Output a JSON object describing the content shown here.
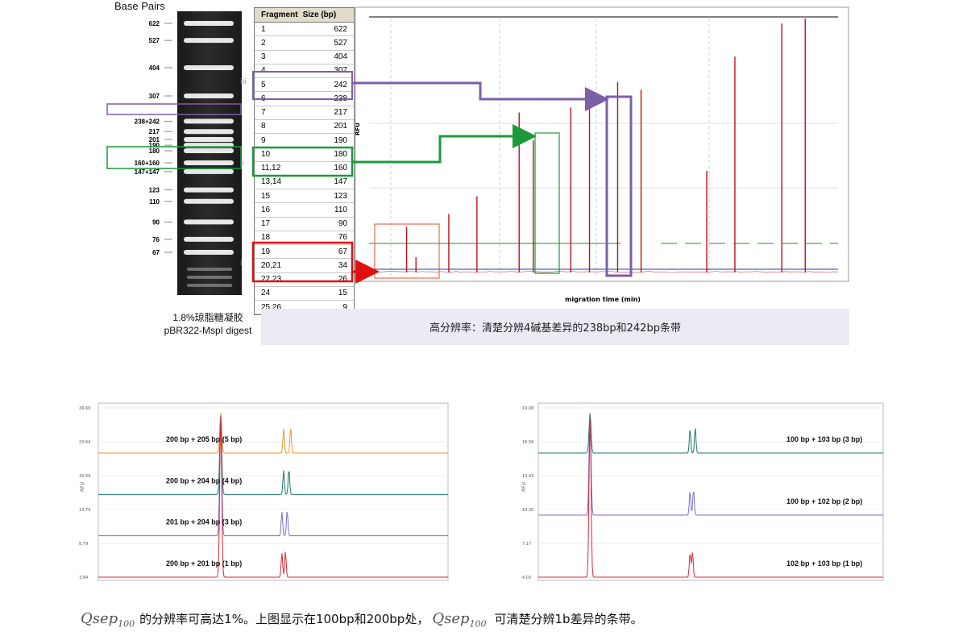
{
  "gel": {
    "title": "Base Pairs",
    "markers": [
      {
        "label": "622",
        "bp": 622
      },
      {
        "label": "527",
        "bp": 527
      },
      {
        "label": "404",
        "bp": 404
      },
      {
        "label": "307",
        "bp": 307
      },
      {
        "label": "238+242",
        "bp": 240
      },
      {
        "label": "217",
        "bp": 217
      },
      {
        "label": "201",
        "bp": 201
      },
      {
        "label": "190",
        "bp": 190
      },
      {
        "label": "180",
        "bp": 180
      },
      {
        "label": "160+160",
        "bp": 160
      },
      {
        "label": "147+147",
        "bp": 147
      },
      {
        "label": "123",
        "bp": 123
      },
      {
        "label": "110",
        "bp": 110
      },
      {
        "label": "90",
        "bp": 90
      },
      {
        "label": "76",
        "bp": 76
      },
      {
        "label": "67",
        "bp": 67
      }
    ],
    "caption_line1": "1.8%琼脂糖凝胶",
    "caption_line2": "pBR322-MspI digest"
  },
  "table": {
    "headers": [
      "Fragment",
      "Size (bp)"
    ],
    "rows": [
      {
        "fragment": "1",
        "size": "622"
      },
      {
        "fragment": "2",
        "size": "527"
      },
      {
        "fragment": "3",
        "size": "404"
      },
      {
        "fragment": "4",
        "size": "307"
      },
      {
        "fragment": "5",
        "size": "242"
      },
      {
        "fragment": "6",
        "size": "238"
      },
      {
        "fragment": "7",
        "size": "217"
      },
      {
        "fragment": "8",
        "size": "201"
      },
      {
        "fragment": "9",
        "size": "190"
      },
      {
        "fragment": "10",
        "size": "180"
      },
      {
        "fragment": "11,12",
        "size": "160"
      },
      {
        "fragment": "13,14",
        "size": "147"
      },
      {
        "fragment": "15",
        "size": "123"
      },
      {
        "fragment": "16",
        "size": "110"
      },
      {
        "fragment": "17",
        "size": "90"
      },
      {
        "fragment": "18",
        "size": "76"
      },
      {
        "fragment": "19",
        "size": "67"
      },
      {
        "fragment": "20,21",
        "size": "34"
      },
      {
        "fragment": "22,23",
        "size": "26"
      },
      {
        "fragment": "24",
        "size": "15"
      },
      {
        "fragment": "25,26",
        "size": "9"
      }
    ],
    "group_markers": [
      "iii",
      "ii",
      "i"
    ],
    "colors": {
      "purple": "#7d5fa8",
      "green": "#1a9a3a",
      "red": "#e01010"
    }
  },
  "chart_data": [
    {
      "type": "line",
      "title": "",
      "xlabel": "migration time (min)",
      "ylabel": "RFU",
      "series": [
        {
          "values": [
            {
              "x": 0.08,
              "y": 0.18
            },
            {
              "x": 0.1,
              "y": 0.06
            },
            {
              "x": 0.17,
              "y": 0.23
            },
            {
              "x": 0.23,
              "y": 0.3
            },
            {
              "x": 0.32,
              "y": 0.63
            },
            {
              "x": 0.35,
              "y": 0.52
            },
            {
              "x": 0.43,
              "y": 0.65
            },
            {
              "x": 0.47,
              "y": 0.72
            },
            {
              "x": 0.53,
              "y": 0.75
            },
            {
              "x": 0.58,
              "y": 0.72
            },
            {
              "x": 0.72,
              "y": 0.4
            },
            {
              "x": 0.78,
              "y": 0.85
            },
            {
              "x": 0.88,
              "y": 0.98
            },
            {
              "x": 0.93,
              "y": 1.0
            }
          ]
        }
      ],
      "colors": {
        "trace": "#c0101a",
        "baseline": "#2040a0",
        "threshold": "#2a8a2a"
      }
    },
    {
      "type": "line",
      "title": "",
      "xlabel": "",
      "ylabel": "RFU",
      "y_ticks": [
        "29.69",
        "23.64",
        "16.69",
        "13.74",
        "8.79",
        "3.84"
      ],
      "series": [
        {
          "name": "200 bp + 205 bp (5 bp)",
          "color": "#e8942a",
          "peaks": [
            0.35,
            0.53,
            0.55
          ]
        },
        {
          "name": "200 bp + 204 bp (4 bp)",
          "color": "#1f7a6a",
          "peaks": [
            0.35,
            0.53,
            0.545
          ]
        },
        {
          "name": "201 bp + 204 bp (3 bp)",
          "color": "#7b6fc9",
          "peaks": [
            0.35,
            0.525,
            0.54
          ]
        },
        {
          "name": "200 bp + 201 bp (1 bp)",
          "color": "#d8283a",
          "peaks": [
            0.35,
            0.525,
            0.535
          ]
        }
      ]
    },
    {
      "type": "line",
      "title": "",
      "xlabel": "",
      "ylabel": "RFU",
      "y_ticks": [
        "19.08",
        "16.56",
        "13.43",
        "10.30",
        "7.17",
        "4.03"
      ],
      "series": [
        {
          "name": "100 bp + 103 bp (3 bp)",
          "color": "#1f7a6a",
          "peaks": [
            0.15,
            0.44,
            0.455
          ]
        },
        {
          "name": "100 bp + 102 bp (2 bp)",
          "color": "#7b6fc9",
          "peaks": [
            0.15,
            0.44,
            0.45
          ]
        },
        {
          "name": "102 bp + 103 bp (1 bp)",
          "color": "#d8283a",
          "peaks": [
            0.15,
            0.44,
            0.447
          ]
        }
      ]
    }
  ],
  "main_caption": "高分辨率：清楚分辨4碱基差异的238bp和242bp条带",
  "bottom": {
    "qsep": "Qsep",
    "qsep_sub": "100",
    "text1": "的分辨率可高达1%。上图显示在100bp和200bp处，",
    "text2": "可清楚分辨1b差异的条带。"
  }
}
